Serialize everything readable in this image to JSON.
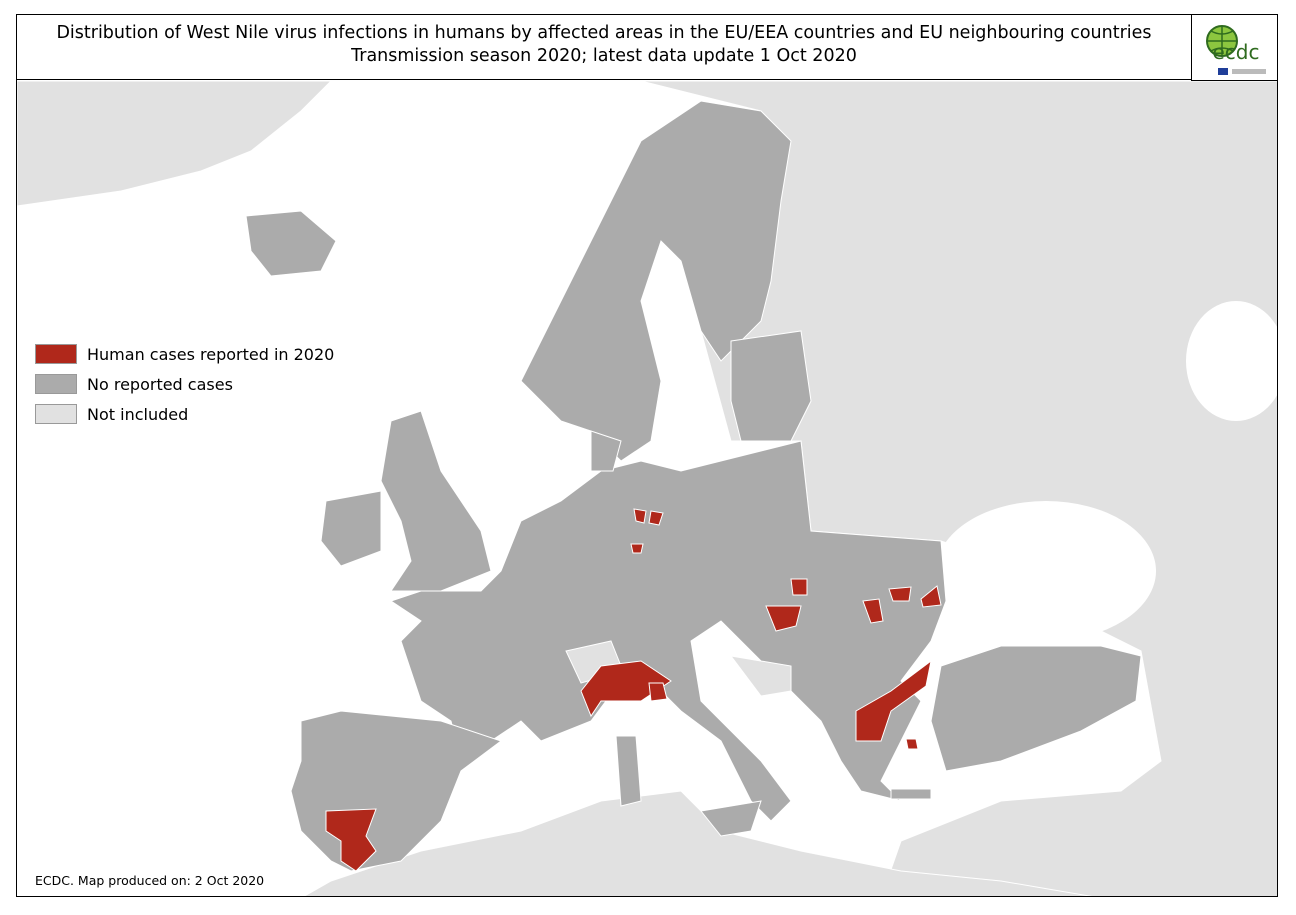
{
  "header": {
    "title_line1": "Distribution of West Nile virus infections in humans by affected areas in the EU/EEA countries and EU neighbouring countries",
    "title_line2": "Transmission season 2020; latest data update 1 Oct 2020"
  },
  "logo": {
    "text": "ecdc"
  },
  "legend": {
    "items": [
      {
        "label": "Human cases reported in 2020",
        "color": "#b0281b"
      },
      {
        "label": "No reported cases",
        "color": "#ababab"
      },
      {
        "label": "Not included",
        "color": "#e1e1e1"
      }
    ]
  },
  "footer": {
    "credit": "ECDC. Map produced on: 2 Oct 2020"
  }
}
